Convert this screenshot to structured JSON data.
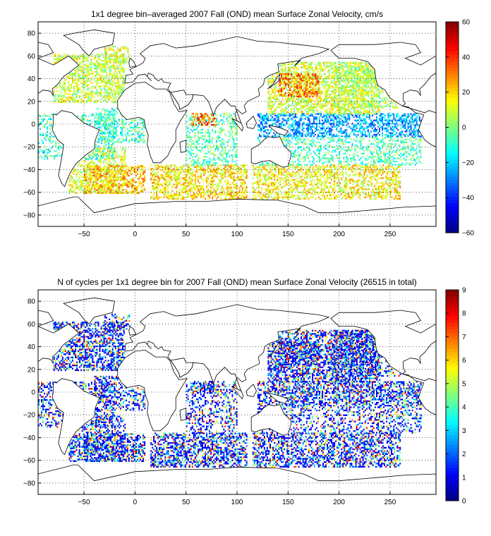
{
  "panels": [
    {
      "title": "1x1 degree bin–averaged 2007 Fall (OND) mean Surface Zonal Velocity, cm/s",
      "colorbar": {
        "min": -60,
        "max": 60,
        "ticks": [
          "60",
          "40",
          "20",
          "0",
          "−20",
          "−40",
          "−60"
        ],
        "colormap": "jet"
      }
    },
    {
      "title": "N of cycles per 1x1 degree bin for 2007 Fall (OND) mean Surface Zonal Velocity (26515 in total)",
      "colorbar": {
        "min": 0,
        "max": 9,
        "ticks": [
          "9",
          "8",
          "7",
          "6",
          "5",
          "4",
          "3",
          "2",
          "1",
          "0"
        ],
        "colormap": "jet"
      }
    }
  ],
  "axes": {
    "x_ticks": [
      "−50",
      "0",
      "50",
      "100",
      "150",
      "200",
      "250"
    ],
    "y_ticks": [
      "80",
      "60",
      "40",
      "20",
      "0",
      "−20",
      "−40",
      "−60",
      "−80"
    ],
    "xlim": [
      -95,
      295
    ],
    "ylim": [
      -90,
      90
    ],
    "grid": "dotted"
  },
  "map": {
    "land_color": "#ffffff",
    "ocean_color": "#ffffff",
    "coastline_color": "#000000"
  }
}
